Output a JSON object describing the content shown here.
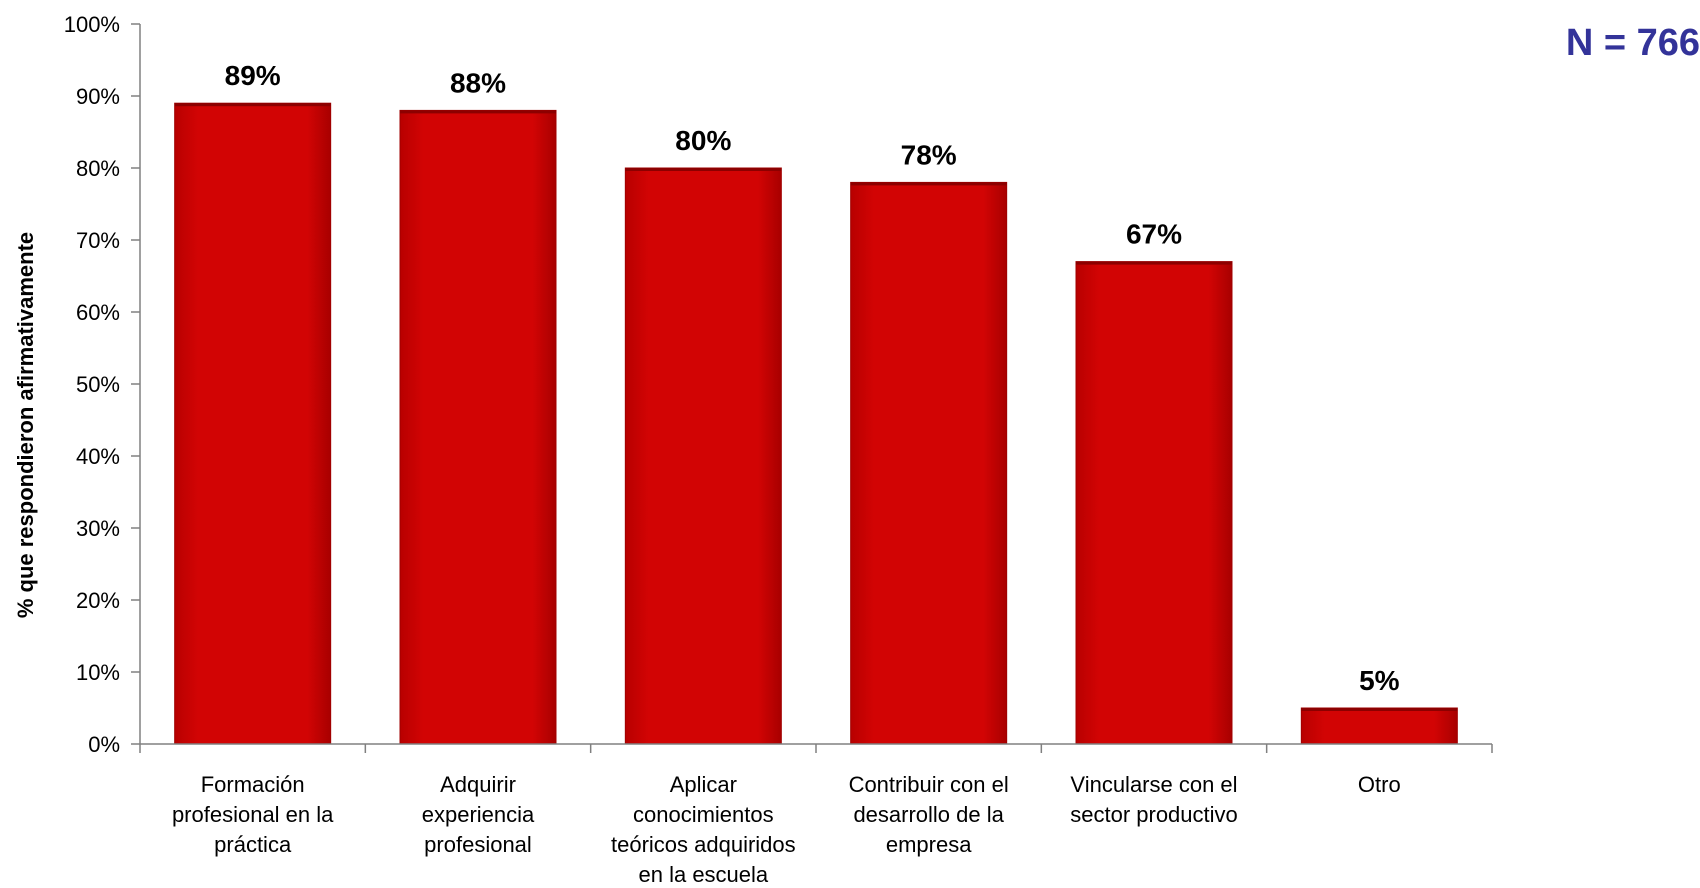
{
  "annotation": "N = 766",
  "chart_data": {
    "type": "bar",
    "categories": [
      [
        "Formación",
        "profesional en la",
        "práctica"
      ],
      [
        "Adquirir",
        "experiencia",
        "profesional"
      ],
      [
        "Aplicar",
        "conocimientos",
        "teóricos adquiridos",
        "en la escuela"
      ],
      [
        "Contribuir con el",
        "desarrollo de la",
        "empresa"
      ],
      [
        "Vincularse con el",
        "sector productivo"
      ],
      [
        "Otro"
      ]
    ],
    "values": [
      89,
      88,
      80,
      78,
      67,
      5
    ],
    "data_labels": [
      "89%",
      "88%",
      "80%",
      "78%",
      "67%",
      "5%"
    ],
    "ylabel": "% que respondieron afirmativamente",
    "xlabel": "",
    "ylim": [
      0,
      100
    ],
    "yticks": [
      0,
      10,
      20,
      30,
      40,
      50,
      60,
      70,
      80,
      90,
      100
    ],
    "ytick_labels": [
      "0%",
      "10%",
      "20%",
      "30%",
      "40%",
      "50%",
      "60%",
      "70%",
      "80%",
      "90%",
      "100%"
    ],
    "bar_color": "#cc0000",
    "grid": false,
    "legend": "none"
  }
}
